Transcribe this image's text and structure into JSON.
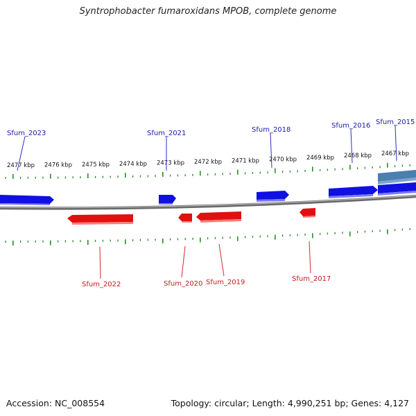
{
  "title": "Syntrophobacter fumaroxidans MPOB, complete genome",
  "footer": {
    "accession": "Accession: NC_008554",
    "summary": "Topology: circular; Length: 4,990,251 bp; Genes: 4,127"
  },
  "colors": {
    "forward_gene": "#1010e0",
    "reverse_gene": "#e01010",
    "other_feature": "#4a7fb0",
    "forward_label": "#1a1aa8",
    "reverse_label": "#c01a1a",
    "backbone": "#888888",
    "ticks": "#2a8a2a"
  },
  "kbp_ticks": [
    "2477 kbp",
    "2476 kbp",
    "2475 kbp",
    "2474 kbp",
    "2473 kbp",
    "2472 kbp",
    "2471 kbp",
    "2470 kbp",
    "2469 kbp",
    "2468 kbp",
    "2467 kbp"
  ],
  "genes_forward": [
    "Sfum_2023",
    "Sfum_2021",
    "Sfum_2018",
    "Sfum_2016",
    "Sfum_2015"
  ],
  "genes_reverse": [
    "Sfum_2022",
    "Sfum_2020",
    "Sfum_2019",
    "Sfum_2017"
  ]
}
